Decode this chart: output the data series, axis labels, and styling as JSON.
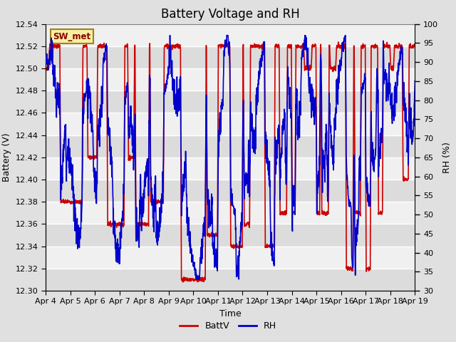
{
  "title": "Battery Voltage and RH",
  "xlabel": "Time",
  "ylabel_left": "Battery (V)",
  "ylabel_right": "RH (%)",
  "station_label": "SW_met",
  "ylim_left": [
    12.3,
    12.54
  ],
  "ylim_right": [
    30,
    100
  ],
  "yticks_left": [
    12.3,
    12.32,
    12.34,
    12.36,
    12.38,
    12.4,
    12.42,
    12.44,
    12.46,
    12.48,
    12.5,
    12.52,
    12.54
  ],
  "yticks_right": [
    30,
    35,
    40,
    45,
    50,
    55,
    60,
    65,
    70,
    75,
    80,
    85,
    90,
    95,
    100
  ],
  "xtick_labels": [
    "Apr 4",
    "Apr 5",
    "Apr 6",
    "Apr 7",
    "Apr 8",
    "Apr 9",
    "Apr 10",
    "Apr 11",
    "Apr 12",
    "Apr 13",
    "Apr 14",
    "Apr 15",
    "Apr 16",
    "Apr 17",
    "Apr 18",
    "Apr 19"
  ],
  "color_batt": "#cc0000",
  "color_rh": "#0000cc",
  "bg_color": "#e0e0e0",
  "plot_bg": "#f0f0f0",
  "linewidth": 1.2,
  "title_fontsize": 12,
  "label_fontsize": 9,
  "tick_fontsize": 8
}
